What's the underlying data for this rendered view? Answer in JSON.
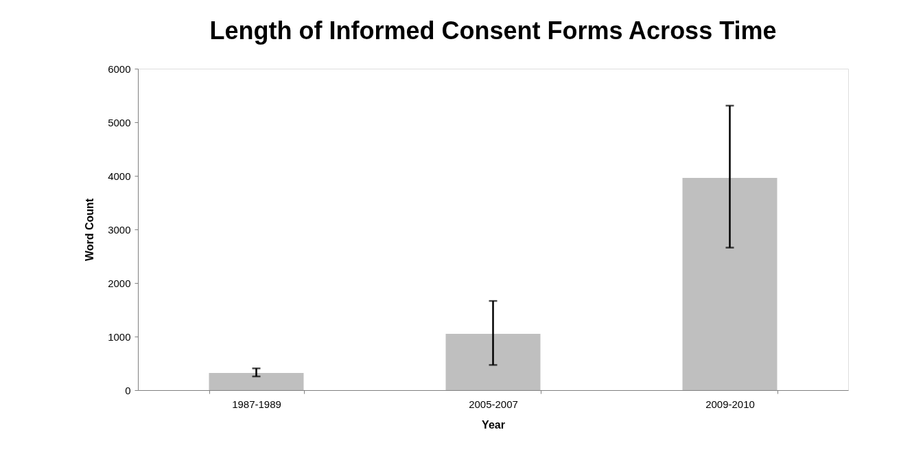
{
  "chart_data": {
    "type": "bar",
    "title": "Length of Informed Consent Forms Across Time",
    "xlabel": "Year",
    "ylabel": "Word Count",
    "categories": [
      "1987-1989",
      "2005-2007",
      "2009-2010"
    ],
    "values": [
      320,
      1050,
      3960
    ],
    "errors": [
      [
        256,
        406
      ],
      [
        470,
        1665
      ],
      [
        2660,
        5310
      ]
    ],
    "color": "#bfbfbf",
    "ylim": [
      0,
      6000
    ],
    "yticks": [
      0,
      1000,
      2000,
      3000,
      4000,
      5000,
      6000
    ],
    "grid": false
  }
}
